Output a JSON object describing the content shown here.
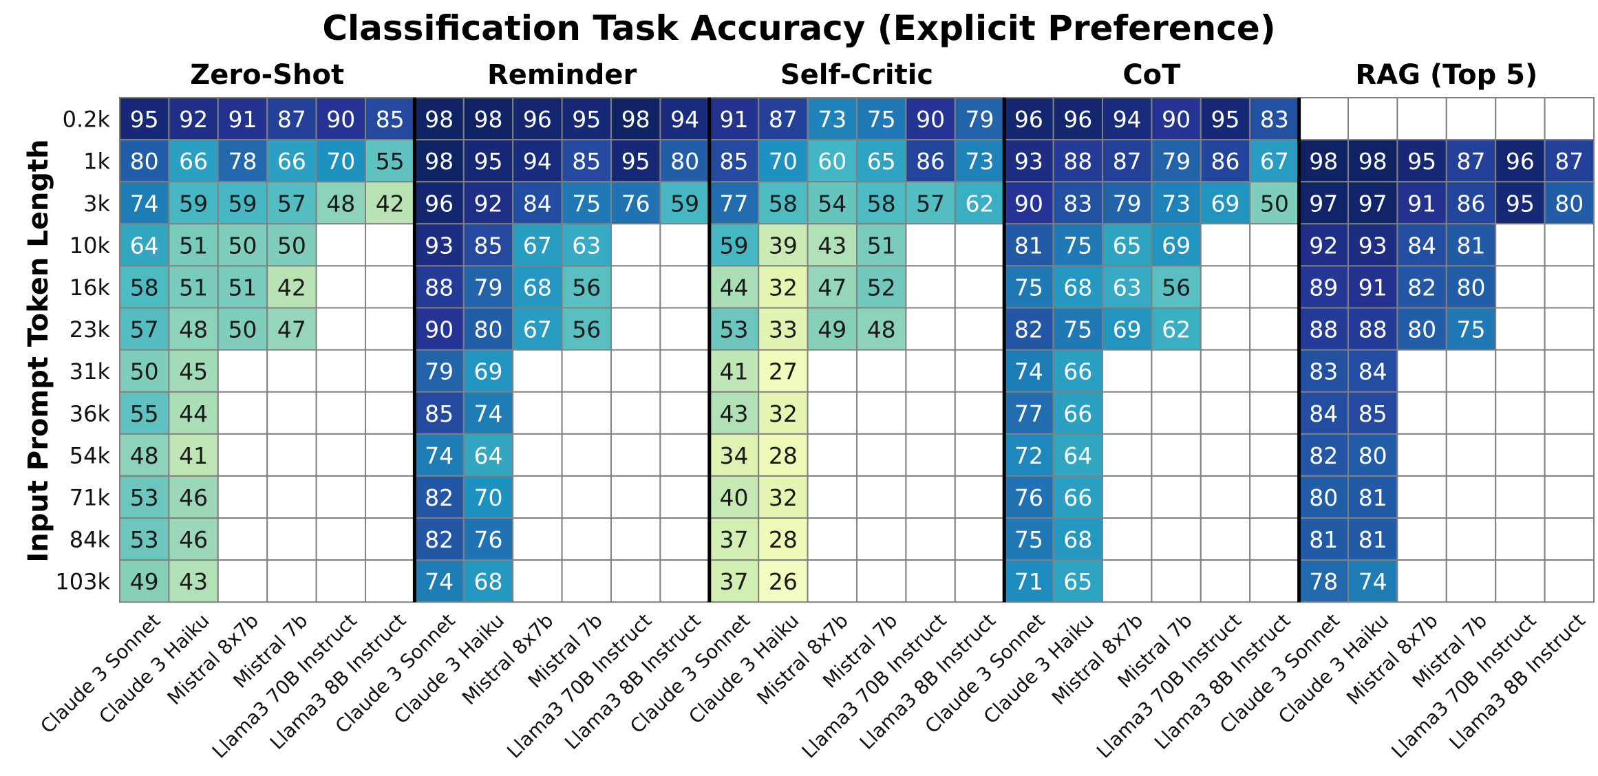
{
  "chart_data": {
    "type": "heatmap",
    "title": "Classification Task Accuracy (Explicit Preference)",
    "ylabel": "Input Prompt Token Length",
    "colormap": "YlGnBu",
    "value_range": [
      20,
      100
    ],
    "row_labels": [
      "0.2k",
      "1k",
      "3k",
      "10k",
      "16k",
      "23k",
      "31k",
      "36k",
      "54k",
      "71k",
      "84k",
      "103k"
    ],
    "models": [
      "Claude 3 Sonnet",
      "Claude 3 Haiku",
      "Mistral 8x7b",
      "Mistral 7b",
      "Llama3 70B Instruct",
      "Llama3 8B Instruct"
    ],
    "groups": [
      {
        "name": "Zero-Shot",
        "values": [
          [
            95,
            92,
            91,
            87,
            90,
            85
          ],
          [
            80,
            66,
            78,
            66,
            70,
            55
          ],
          [
            74,
            59,
            59,
            57,
            48,
            42
          ],
          [
            64,
            51,
            50,
            50,
            null,
            null
          ],
          [
            58,
            51,
            51,
            42,
            null,
            null
          ],
          [
            57,
            48,
            50,
            47,
            null,
            null
          ],
          [
            50,
            45,
            null,
            null,
            null,
            null
          ],
          [
            55,
            44,
            null,
            null,
            null,
            null
          ],
          [
            48,
            41,
            null,
            null,
            null,
            null
          ],
          [
            53,
            46,
            null,
            null,
            null,
            null
          ],
          [
            53,
            46,
            null,
            null,
            null,
            null
          ],
          [
            49,
            43,
            null,
            null,
            null,
            null
          ]
        ]
      },
      {
        "name": "Reminder",
        "values": [
          [
            98,
            98,
            96,
            95,
            98,
            94
          ],
          [
            98,
            95,
            94,
            85,
            95,
            80
          ],
          [
            96,
            92,
            84,
            75,
            76,
            59
          ],
          [
            93,
            85,
            67,
            63,
            null,
            null
          ],
          [
            88,
            79,
            68,
            56,
            null,
            null
          ],
          [
            90,
            80,
            67,
            56,
            null,
            null
          ],
          [
            79,
            69,
            null,
            null,
            null,
            null
          ],
          [
            85,
            74,
            null,
            null,
            null,
            null
          ],
          [
            74,
            64,
            null,
            null,
            null,
            null
          ],
          [
            82,
            70,
            null,
            null,
            null,
            null
          ],
          [
            82,
            76,
            null,
            null,
            null,
            null
          ],
          [
            74,
            68,
            null,
            null,
            null,
            null
          ]
        ]
      },
      {
        "name": "Self-Critic",
        "values": [
          [
            91,
            87,
            73,
            75,
            90,
            79
          ],
          [
            85,
            70,
            60,
            65,
            86,
            73
          ],
          [
            77,
            58,
            54,
            58,
            57,
            62
          ],
          [
            59,
            39,
            43,
            51,
            null,
            null
          ],
          [
            44,
            32,
            47,
            52,
            null,
            null
          ],
          [
            53,
            33,
            49,
            48,
            null,
            null
          ],
          [
            41,
            27,
            null,
            null,
            null,
            null
          ],
          [
            43,
            32,
            null,
            null,
            null,
            null
          ],
          [
            34,
            28,
            null,
            null,
            null,
            null
          ],
          [
            40,
            32,
            null,
            null,
            null,
            null
          ],
          [
            37,
            28,
            null,
            null,
            null,
            null
          ],
          [
            37,
            26,
            null,
            null,
            null,
            null
          ]
        ]
      },
      {
        "name": "CoT",
        "values": [
          [
            96,
            96,
            94,
            90,
            95,
            83
          ],
          [
            93,
            88,
            87,
            79,
            86,
            67
          ],
          [
            90,
            83,
            79,
            73,
            69,
            50
          ],
          [
            81,
            75,
            65,
            69,
            null,
            null
          ],
          [
            75,
            68,
            63,
            56,
            null,
            null
          ],
          [
            82,
            75,
            69,
            62,
            null,
            null
          ],
          [
            74,
            66,
            null,
            null,
            null,
            null
          ],
          [
            77,
            66,
            null,
            null,
            null,
            null
          ],
          [
            72,
            64,
            null,
            null,
            null,
            null
          ],
          [
            76,
            66,
            null,
            null,
            null,
            null
          ],
          [
            75,
            68,
            null,
            null,
            null,
            null
          ],
          [
            71,
            65,
            null,
            null,
            null,
            null
          ]
        ]
      },
      {
        "name": "RAG (Top 5)",
        "values": [
          [
            null,
            null,
            null,
            null,
            null,
            null
          ],
          [
            98,
            98,
            95,
            87,
            96,
            87
          ],
          [
            97,
            97,
            91,
            86,
            95,
            80
          ],
          [
            92,
            93,
            84,
            81,
            null,
            null
          ],
          [
            89,
            91,
            82,
            80,
            null,
            null
          ],
          [
            88,
            88,
            80,
            75,
            null,
            null
          ],
          [
            83,
            84,
            null,
            null,
            null,
            null
          ],
          [
            84,
            85,
            null,
            null,
            null,
            null
          ],
          [
            82,
            80,
            null,
            null,
            null,
            null
          ],
          [
            80,
            81,
            null,
            null,
            null,
            null
          ],
          [
            81,
            81,
            null,
            null,
            null,
            null
          ],
          [
            78,
            74,
            null,
            null,
            null,
            null
          ]
        ]
      }
    ]
  }
}
